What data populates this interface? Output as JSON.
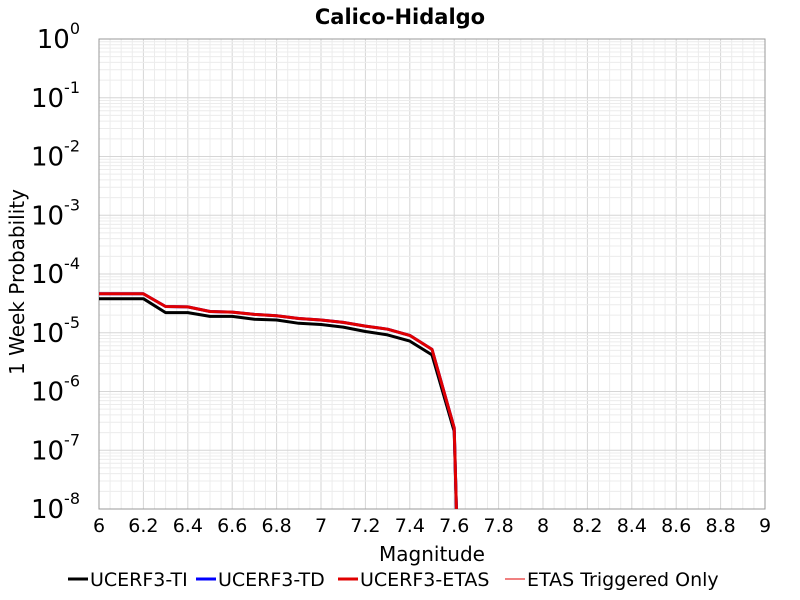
{
  "chart_data": {
    "type": "line",
    "title": "Calico-Hidalgo",
    "xlabel": "Magnitude",
    "ylabel": "1 Week Probability",
    "xlim": [
      6,
      9
    ],
    "ylim": [
      1e-08,
      1
    ],
    "yscale": "log",
    "grid": true,
    "legend_position": "bottom",
    "x_ticks": [
      "6",
      "6.2",
      "6.4",
      "6.6",
      "6.8",
      "7",
      "7.2",
      "7.4",
      "7.6",
      "7.8",
      "8",
      "8.2",
      "8.4",
      "8.6",
      "8.8",
      "9"
    ],
    "y_ticks": [
      {
        "base": "10",
        "exp": "0",
        "value": 1
      },
      {
        "base": "10",
        "exp": "-1",
        "value": 0.1
      },
      {
        "base": "10",
        "exp": "-2",
        "value": 0.01
      },
      {
        "base": "10",
        "exp": "-3",
        "value": 0.001
      },
      {
        "base": "10",
        "exp": "-4",
        "value": 0.0001
      },
      {
        "base": "10",
        "exp": "-5",
        "value": 1e-05
      },
      {
        "base": "10",
        "exp": "-6",
        "value": 1e-06
      },
      {
        "base": "10",
        "exp": "-7",
        "value": 1e-07
      },
      {
        "base": "10",
        "exp": "-8",
        "value": 1e-08
      }
    ],
    "series": [
      {
        "name": "UCERF3-TI",
        "color": "#000000",
        "width": 3,
        "x": [
          6.0,
          6.1,
          6.2,
          6.3,
          6.4,
          6.5,
          6.6,
          6.7,
          6.8,
          6.9,
          7.0,
          7.1,
          7.2,
          7.3,
          7.4,
          7.5,
          7.6,
          7.61
        ],
        "y": [
          3.8e-05,
          3.8e-05,
          3.8e-05,
          2.2e-05,
          2.2e-05,
          1.9e-05,
          1.9e-05,
          1.7e-05,
          1.65e-05,
          1.45e-05,
          1.38e-05,
          1.25e-05,
          1.05e-05,
          9.2e-06,
          7.2e-06,
          4.2e-06,
          2.1e-07,
          1e-08
        ]
      },
      {
        "name": "UCERF3-TD",
        "color": "#0000ff",
        "width": 3,
        "x": [
          6.0,
          6.1,
          6.2,
          6.3,
          6.4,
          6.5,
          6.6,
          6.7,
          6.8,
          6.9,
          7.0,
          7.1,
          7.2,
          7.3,
          7.4,
          7.5,
          7.6,
          7.61
        ],
        "y": [
          4.6e-05,
          4.6e-05,
          4.6e-05,
          2.8e-05,
          2.75e-05,
          2.3e-05,
          2.25e-05,
          2.05e-05,
          1.95e-05,
          1.75e-05,
          1.65e-05,
          1.5e-05,
          1.3e-05,
          1.15e-05,
          9e-06,
          5.2e-06,
          2.4e-07,
          1e-08
        ]
      },
      {
        "name": "UCERF3-ETAS",
        "color": "#e00000",
        "width": 3,
        "x": [
          6.0,
          6.1,
          6.2,
          6.3,
          6.4,
          6.5,
          6.6,
          6.7,
          6.8,
          6.9,
          7.0,
          7.1,
          7.2,
          7.3,
          7.4,
          7.5,
          7.6,
          7.61
        ],
        "y": [
          4.6e-05,
          4.6e-05,
          4.6e-05,
          2.8e-05,
          2.75e-05,
          2.3e-05,
          2.25e-05,
          2.05e-05,
          1.95e-05,
          1.75e-05,
          1.65e-05,
          1.5e-05,
          1.3e-05,
          1.15e-05,
          9e-06,
          5.2e-06,
          2.4e-07,
          1e-08
        ]
      },
      {
        "name": "ETAS Triggered Only",
        "color": "#e00000",
        "width": 1,
        "x": [],
        "y": []
      }
    ]
  }
}
